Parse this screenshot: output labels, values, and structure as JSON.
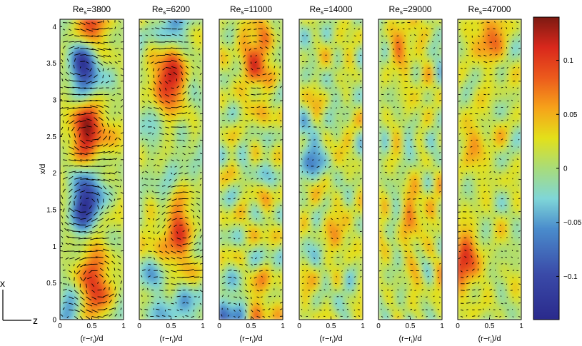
{
  "chart_data": {
    "type": "heatmap",
    "ylabel": "x/d",
    "xlabel": {
      "pre": "(r−r",
      "sub": "i",
      "post": ")/d"
    },
    "xlim": [
      0,
      1
    ],
    "ylim": [
      0,
      4.1
    ],
    "xticks": [
      "0",
      "0.5",
      "1"
    ],
    "yticks": [
      "0",
      "0.5",
      "1",
      "1.5",
      "2",
      "2.5",
      "3",
      "3.5",
      "4"
    ],
    "colorbar": {
      "range": [
        -0.14,
        0.14
      ],
      "ticks": [
        "0.1",
        "0.05",
        "0",
        "−0.05",
        "−0.1"
      ],
      "tick_values": [
        0.1,
        0.05,
        0,
        -0.05,
        -0.1
      ],
      "colormap": "jet"
    },
    "axes_icon": {
      "vertical": "x",
      "horizontal": "z"
    },
    "panels": [
      {
        "title": {
          "pre": "Re",
          "sub": "s",
          "post": "=3800"
        },
        "noise": 0.03,
        "arrow_scale": 1.0,
        "features": [
          [
            0.5,
            4.0,
            0.08
          ],
          [
            0.4,
            3.45,
            -0.13
          ],
          [
            0.45,
            2.6,
            0.14
          ],
          [
            0.4,
            1.6,
            -0.13
          ],
          [
            0.55,
            0.5,
            0.11
          ],
          [
            0.2,
            0.0,
            -0.05
          ]
        ]
      },
      {
        "title": {
          "pre": "Re",
          "sub": "s",
          "post": "=6200"
        },
        "noise": 0.035,
        "arrow_scale": 0.8,
        "features": [
          [
            0.6,
            4.0,
            -0.06
          ],
          [
            0.5,
            3.3,
            0.12
          ],
          [
            0.2,
            2.6,
            -0.03
          ],
          [
            0.45,
            1.9,
            -0.04
          ],
          [
            0.65,
            1.2,
            0.11
          ],
          [
            0.3,
            0.3,
            -0.04
          ],
          [
            0.8,
            0.3,
            -0.04
          ]
        ]
      },
      {
        "title": {
          "pre": "Re",
          "sub": "s",
          "post": "=11000"
        },
        "noise": 0.04,
        "arrow_scale": 0.7,
        "features": [
          [
            0.6,
            3.55,
            0.1
          ],
          [
            0.2,
            0.1,
            -0.07
          ],
          [
            0.65,
            0.4,
            0.04
          ]
        ]
      },
      {
        "title": {
          "pre": "Re",
          "sub": "s",
          "post": "=14000"
        },
        "noise": 0.035,
        "arrow_scale": 0.6,
        "features": [
          [
            0.2,
            2.2,
            -0.05
          ],
          [
            0.6,
            1.4,
            0.03
          ]
        ]
      },
      {
        "title": {
          "pre": "Re",
          "sub": "s",
          "post": "=29000"
        },
        "noise": 0.035,
        "arrow_scale": 0.6,
        "features": [
          [
            0.45,
            3.75,
            0.05
          ],
          [
            0.6,
            1.3,
            0.05
          ]
        ]
      },
      {
        "title": {
          "pre": "Re",
          "sub": "s",
          "post": "=47000"
        },
        "noise": 0.035,
        "arrow_scale": 0.6,
        "features": [
          [
            0.5,
            3.9,
            0.07
          ],
          [
            0.1,
            0.8,
            0.1
          ],
          [
            0.3,
            2.4,
            0.04
          ]
        ]
      }
    ]
  }
}
